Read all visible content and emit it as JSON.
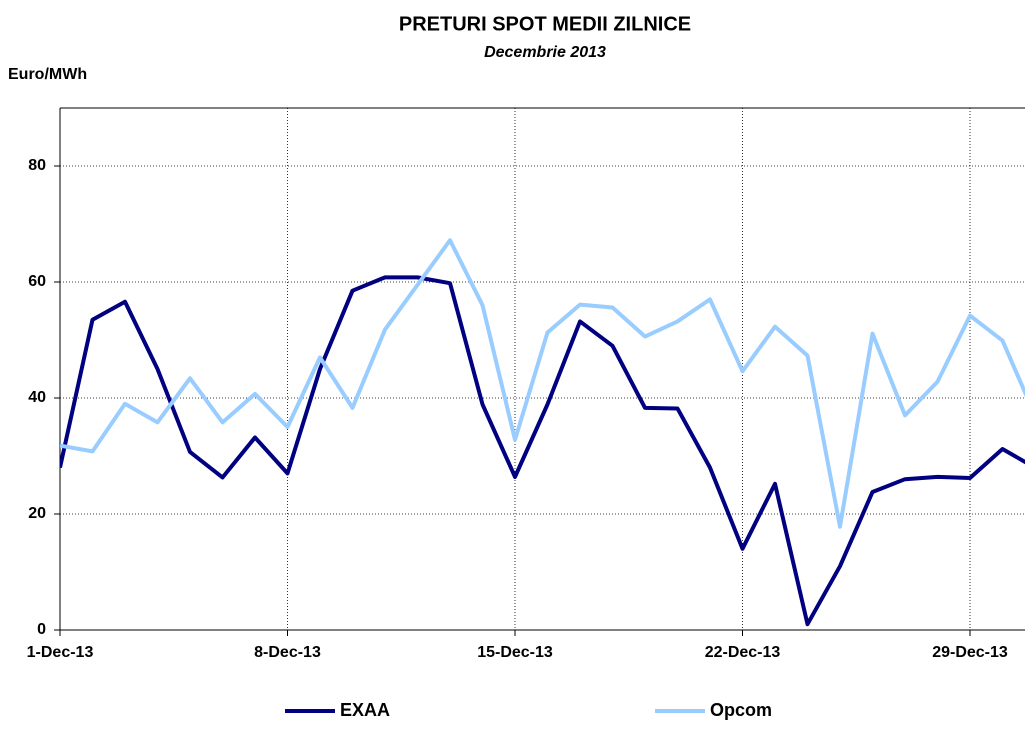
{
  "chart_data": {
    "type": "line",
    "title": "PRETURI SPOT MEDII ZILNICE",
    "subtitle": "Decembrie 2013",
    "y_label": "Euro/MWh",
    "categories": [
      "1-Dec-13",
      null,
      null,
      null,
      null,
      null,
      null,
      "8-Dec-13",
      null,
      null,
      null,
      null,
      null,
      null,
      "15-Dec-13",
      null,
      null,
      null,
      null,
      null,
      null,
      "22-Dec-13",
      null,
      null,
      null,
      null,
      null,
      null,
      "29-Dec-13",
      null,
      null
    ],
    "series": [
      {
        "name": "EXAA",
        "color": "#000080",
        "values": [
          28,
          53.5,
          56.6,
          45,
          30.7,
          26.3,
          33.2,
          27,
          45,
          58.5,
          60.8,
          60.8,
          59.8,
          38.9,
          26.4,
          38.9,
          53.2,
          49,
          38.3,
          38.2,
          28,
          14,
          25.2,
          1,
          11,
          23.8,
          26,
          26.4,
          26.2,
          31.2,
          28
        ]
      },
      {
        "name": "Opcom",
        "color": "#99ccff",
        "values": [
          31.8,
          30.8,
          39,
          35.8,
          43.4,
          35.8,
          40.7,
          35,
          47,
          38.3,
          51.8,
          59.5,
          67.2,
          56,
          32.8,
          51.3,
          56.1,
          55.6,
          50.6,
          53.2,
          57,
          44.6,
          52.3,
          47.3,
          17.8,
          51.1,
          37,
          42.8,
          54.2,
          49.9,
          37
        ]
      }
    ],
    "ylim": [
      0,
      90
    ],
    "yticks": [
      0,
      20,
      40,
      60,
      80
    ],
    "grid": true
  }
}
